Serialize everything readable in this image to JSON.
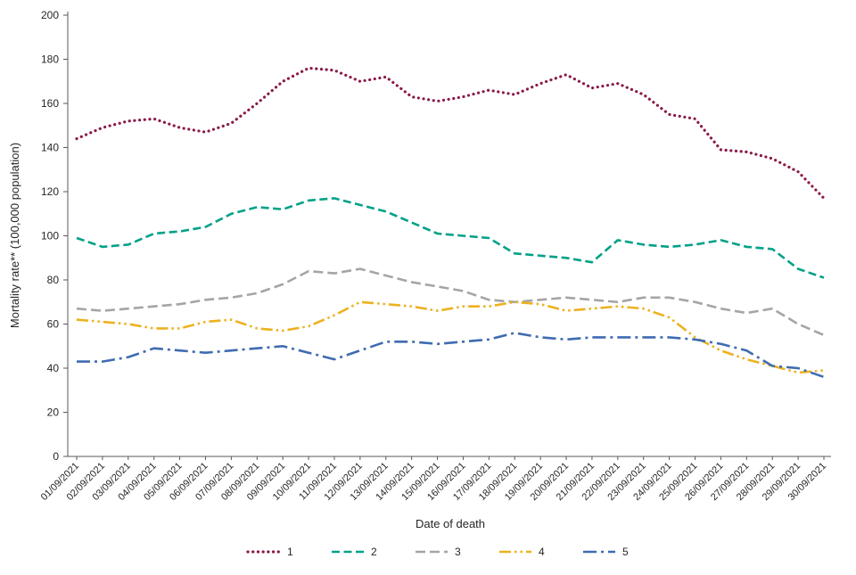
{
  "chart_data": {
    "type": "line",
    "title": "",
    "xlabel": "Date of death",
    "ylabel": "Mortality rate** (100,000 population)",
    "ylim": [
      0,
      200
    ],
    "ytick_step": 20,
    "grid": false,
    "legend_position": "bottom",
    "x": [
      "01/09/2021",
      "02/09/2021",
      "03/09/2021",
      "04/09/2021",
      "05/09/2021",
      "06/09/2021",
      "07/09/2021",
      "08/09/2021",
      "09/09/2021",
      "10/09/2021",
      "11/09/2021",
      "12/09/2021",
      "13/09/2021",
      "14/09/2021",
      "15/09/2021",
      "16/09/2021",
      "17/09/2021",
      "18/09/2021",
      "19/09/2021",
      "20/09/2021",
      "21/09/2021",
      "22/09/2021",
      "23/09/2021",
      "24/09/2021",
      "25/09/2021",
      "26/09/2021",
      "27/09/2021",
      "28/09/2021",
      "29/09/2021",
      "30/09/2021"
    ],
    "series": [
      {
        "name": "1",
        "color": "#8a1a4a",
        "dash": "dotted",
        "values": [
          144,
          149,
          152,
          153,
          149,
          147,
          151,
          160,
          170,
          176,
          175,
          170,
          172,
          163,
          161,
          163,
          166,
          164,
          169,
          173,
          167,
          169,
          164,
          155,
          153,
          139,
          138,
          135,
          129,
          117
        ]
      },
      {
        "name": "2",
        "color": "#00a188",
        "dash": "dashed",
        "values": [
          99,
          95,
          96,
          101,
          102,
          104,
          110,
          113,
          112,
          116,
          117,
          114,
          111,
          106,
          101,
          100,
          99,
          92,
          91,
          90,
          88,
          98,
          96,
          95,
          96,
          98,
          95,
          94,
          85,
          81
        ]
      },
      {
        "name": "3",
        "color": "#a5a5a5",
        "dash": "dashed-long",
        "values": [
          67,
          66,
          67,
          68,
          69,
          71,
          72,
          74,
          78,
          84,
          83,
          85,
          82,
          79,
          77,
          75,
          71,
          70,
          71,
          72,
          71,
          70,
          72,
          72,
          70,
          67,
          65,
          67,
          60,
          55
        ]
      },
      {
        "name": "4",
        "color": "#edb120",
        "dash": "dash-dot-dot",
        "values": [
          62,
          61,
          60,
          58,
          58,
          61,
          62,
          58,
          57,
          59,
          64,
          70,
          69,
          68,
          66,
          68,
          68,
          70,
          69,
          66,
          67,
          68,
          67,
          63,
          54,
          48,
          44,
          41,
          38,
          39
        ]
      },
      {
        "name": "5",
        "color": "#3e6cb1",
        "dash": "long-dash-dot",
        "values": [
          43,
          43,
          45,
          49,
          48,
          47,
          48,
          49,
          50,
          47,
          44,
          48,
          52,
          52,
          51,
          52,
          53,
          56,
          54,
          53,
          54,
          54,
          54,
          54,
          53,
          51,
          48,
          41,
          40,
          36
        ]
      }
    ]
  }
}
